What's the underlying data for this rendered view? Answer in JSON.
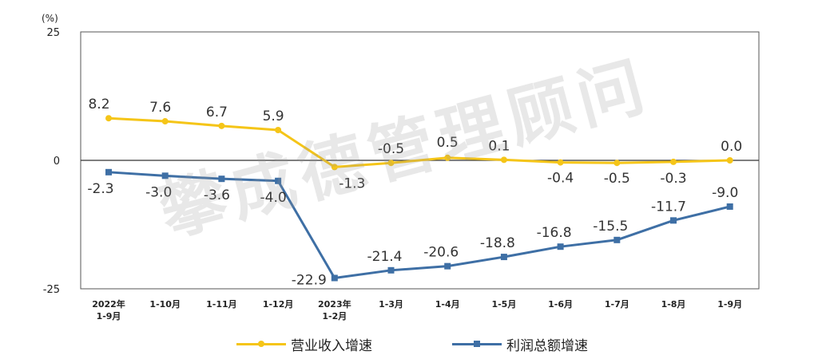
{
  "chart_data": {
    "type": "line",
    "unit_label": "(%)",
    "ylim": [
      -25,
      25
    ],
    "yticks": [
      "25",
      "0",
      "-25"
    ],
    "grid": false,
    "legend_position": "bottom",
    "categories": [
      [
        "2022年",
        "1-9月"
      ],
      [
        "1-10月"
      ],
      [
        "1-11月"
      ],
      [
        "1-12月"
      ],
      [
        "2023年",
        "1-2月"
      ],
      [
        "1-3月"
      ],
      [
        "1-4月"
      ],
      [
        "1-5月"
      ],
      [
        "1-6月"
      ],
      [
        "1-7月"
      ],
      [
        "1-8月"
      ],
      [
        "1-9月"
      ]
    ],
    "series": [
      {
        "name": "营业收入增速",
        "color": "#f5c518",
        "values": [
          8.2,
          7.6,
          6.7,
          5.9,
          -1.3,
          -0.5,
          0.5,
          0.1,
          -0.4,
          -0.5,
          -0.3,
          0.0
        ],
        "labels": [
          "8.2",
          "7.6",
          "6.7",
          "5.9",
          "-1.3",
          "-0.5",
          "0.5",
          "0.1",
          "-0.4",
          "-0.5",
          "-0.3",
          "0.0"
        ]
      },
      {
        "name": "利润总额增速",
        "color": "#3e6fa5",
        "values": [
          -2.3,
          -3.0,
          -3.6,
          -4.0,
          -22.9,
          -21.4,
          -20.6,
          -18.8,
          -16.8,
          -15.5,
          -11.7,
          -9.0
        ],
        "labels": [
          "-2.3",
          "-3.0",
          "-3.6",
          "-4.0",
          "-22.9",
          "-21.4",
          "-20.6",
          "-18.8",
          "-16.8",
          "-15.5",
          "-11.7",
          "-9.0"
        ]
      }
    ]
  },
  "watermark": "攀成德管理顾问"
}
